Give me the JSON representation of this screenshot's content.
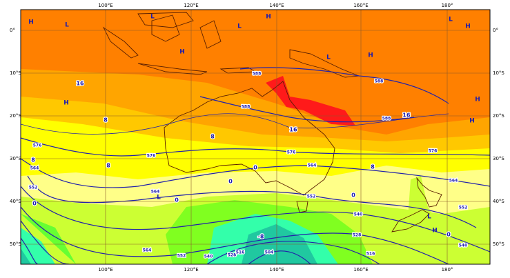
{
  "map": {
    "lon_labels": [
      "100°E",
      "120°E",
      "140°E",
      "160°E",
      "180°"
    ],
    "lat_labels": [
      "0°",
      "10°S",
      "20°S",
      "30°S",
      "40°S",
      "50°S"
    ],
    "pressure_centers": [
      "H",
      "L",
      "L",
      "H",
      "L",
      "H",
      "H",
      "L",
      "L",
      "H",
      "H",
      "H",
      "H",
      "L",
      "L",
      "H"
    ],
    "contour_labels": [
      "16",
      "16",
      "16",
      "8",
      "8",
      "8",
      "8",
      "8",
      "0",
      "0",
      "0",
      "0",
      "0",
      "0",
      "-8",
      "588",
      "588",
      "588",
      "588",
      "576",
      "576",
      "576",
      "576",
      "564",
      "564",
      "564",
      "564",
      "564",
      "552",
      "552",
      "552",
      "552",
      "540",
      "540",
      "540",
      "528",
      "528",
      "516",
      "516",
      "504"
    ]
  }
}
